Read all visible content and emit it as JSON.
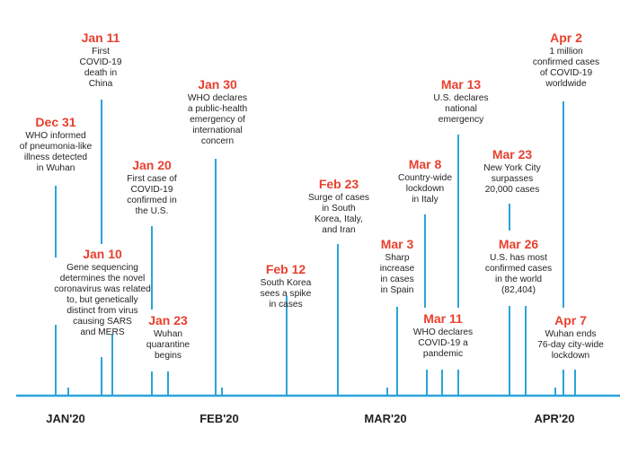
{
  "accent_color": "#e8402e",
  "line_color": "#2aa4d8",
  "months": [
    {
      "label": "JAN'20"
    },
    {
      "label": "FEB'20"
    },
    {
      "label": "MAR'20"
    },
    {
      "label": "APR'20"
    }
  ],
  "events": [
    {
      "date": "Dec 31",
      "text": "WHO informed\nof pneumonia-like\nillness detected\nin Wuhan"
    },
    {
      "date": "Jan 10",
      "text": "Gene sequencing\ndetermines the novel\ncoronavirus was related\nto, but genetically\ndistinct from virus\ncausing SARS\nand MERS"
    },
    {
      "date": "Jan 11",
      "text": "First\nCOVID-19\ndeath in\nChina"
    },
    {
      "date": "Jan 20",
      "text": "First case of\nCOVID-19\nconfirmed in\nthe U.S."
    },
    {
      "date": "Jan 23",
      "text": "Wuhan\nquarantine\nbegins"
    },
    {
      "date": "Jan 30",
      "text": "WHO declares\na public-health\nemergency of\ninternational\nconcern"
    },
    {
      "date": "Feb 12",
      "text": "South Korea\nsees a spike\nin cases"
    },
    {
      "date": "Feb 23",
      "text": "Surge of cases\nin South\nKorea, Italy,\nand Iran"
    },
    {
      "date": "Mar 3",
      "text": "Sharp\nincrease\nin cases\nin Spain"
    },
    {
      "date": "Mar 8",
      "text": "Country-wide\nlockdown\nin Italy"
    },
    {
      "date": "Mar 11",
      "text": "WHO declares\nCOVID-19 a\npandemic"
    },
    {
      "date": "Mar 13",
      "text": "U.S. declares\nnational\nemergency"
    },
    {
      "date": "Mar 23",
      "text": "New York City\nsurpasses\n20,000 cases"
    },
    {
      "date": "Mar 26",
      "text": "U.S. has most\nconfirmed cases\nin the world\n(82,404)"
    },
    {
      "date": "Apr 2",
      "text": "1 million\nconfirmed cases\nof COVID-19\nworldwide"
    },
    {
      "date": "Apr 7",
      "text": "Wuhan ends\n76-day city-wide\nlockdown"
    }
  ]
}
